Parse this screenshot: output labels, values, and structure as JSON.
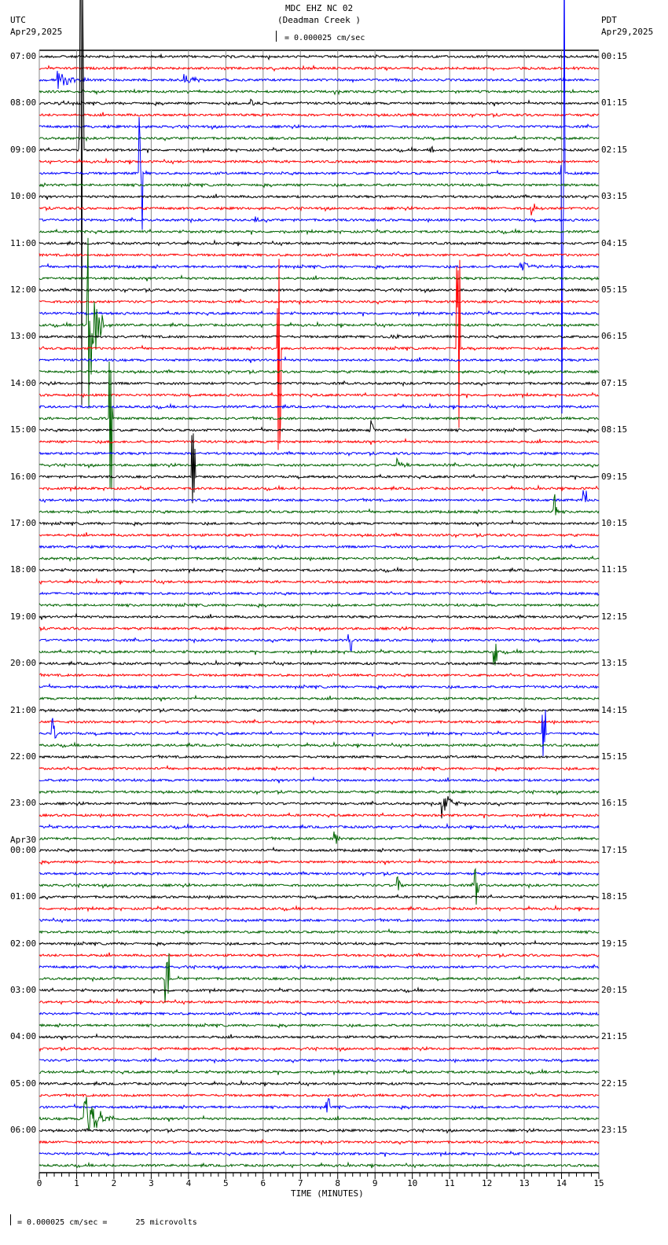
{
  "header": {
    "title": "MDC EHZ NC 02",
    "subtitle": "(Deadman Creek )",
    "scale": "= 0.000025 cm/sec",
    "left_tz": "UTC",
    "left_date": "Apr29,2025",
    "right_tz": "PDT",
    "right_date": "Apr29,2025"
  },
  "footer": {
    "scale_note": "= 0.000025 cm/sec =      25 microvolts"
  },
  "chart_data": {
    "type": "line",
    "title": "MDC EHZ NC 02 (Deadman Creek )",
    "xlabel": "TIME (MINUTES)",
    "xlim": [
      0,
      15
    ],
    "xticks": [
      "0",
      "1",
      "2",
      "3",
      "4",
      "5",
      "6",
      "7",
      "8",
      "9",
      "10",
      "11",
      "12",
      "13",
      "14",
      "15"
    ],
    "trace_minutes": 15,
    "trace_count": 96,
    "trace_colors": [
      "#000000",
      "#ff0000",
      "#0000ff",
      "#006400"
    ],
    "left_labels": [
      "07:00",
      "08:00",
      "09:00",
      "10:00",
      "11:00",
      "12:00",
      "13:00",
      "14:00",
      "15:00",
      "16:00",
      "17:00",
      "18:00",
      "19:00",
      "20:00",
      "21:00",
      "22:00",
      "23:00",
      "00:00",
      "01:00",
      "02:00",
      "03:00",
      "04:00",
      "05:00",
      "06:00"
    ],
    "date_change_label": "Apr30",
    "right_labels": [
      "00:15",
      "01:15",
      "02:15",
      "03:15",
      "04:15",
      "05:15",
      "06:15",
      "07:15",
      "08:15",
      "09:15",
      "10:15",
      "11:15",
      "12:15",
      "13:15",
      "14:15",
      "15:15",
      "16:15",
      "17:15",
      "18:15",
      "19:15",
      "20:15",
      "21:15",
      "22:15",
      "23:15"
    ],
    "events": [
      {
        "trace": 2,
        "minute": 0.5,
        "amp": 0.8,
        "dur": 0.8
      },
      {
        "trace": 2,
        "minute": 3.9,
        "amp": 0.6,
        "dur": 0.6
      },
      {
        "trace": 4,
        "minute": 5.65,
        "amp": 0.6,
        "dur": 0.2
      },
      {
        "trace": 8,
        "minute": 10.5,
        "amp": 0.4,
        "dur": 0.2
      },
      {
        "trace": 8,
        "minute": 1.1,
        "amp": 24,
        "dur": 0.05
      },
      {
        "trace": 10,
        "minute": 2.7,
        "amp": 5,
        "dur": 0.05
      },
      {
        "trace": 10,
        "minute": 14.0,
        "amp": 24,
        "dur": 0.05
      },
      {
        "trace": 13,
        "minute": 13.2,
        "amp": 0.6,
        "dur": 0.4
      },
      {
        "trace": 14,
        "minute": 5.8,
        "amp": 0.5,
        "dur": 0.1
      },
      {
        "trace": 18,
        "minute": 12.9,
        "amp": 0.5,
        "dur": 0.6
      },
      {
        "trace": 23,
        "minute": 1.3,
        "amp": 9,
        "dur": 0.4
      },
      {
        "trace": 24,
        "minute": 9.4,
        "amp": 0.5,
        "dur": 0.4
      },
      {
        "trace": 25,
        "minute": 6.4,
        "amp": 10,
        "dur": 0.05
      },
      {
        "trace": 25,
        "minute": 11.2,
        "amp": 10,
        "dur": 0.05
      },
      {
        "trace": 31,
        "minute": 1.9,
        "amp": 12,
        "dur": 0.05
      },
      {
        "trace": 32,
        "minute": 8.9,
        "amp": 1.2,
        "dur": 0.05
      },
      {
        "trace": 35,
        "minute": 9.6,
        "amp": 0.5,
        "dur": 0.4
      },
      {
        "trace": 36,
        "minute": 4.1,
        "amp": 4,
        "dur": 0.05
      },
      {
        "trace": 38,
        "minute": 14.6,
        "amp": 1.2,
        "dur": 0.05
      },
      {
        "trace": 39,
        "minute": 13.8,
        "amp": 3,
        "dur": 0.1
      },
      {
        "trace": 50,
        "minute": 8.3,
        "amp": 1,
        "dur": 0.05
      },
      {
        "trace": 51,
        "minute": 12.2,
        "amp": 1.2,
        "dur": 0.05
      },
      {
        "trace": 58,
        "minute": 0.35,
        "amp": 1.5,
        "dur": 0.2
      },
      {
        "trace": 58,
        "minute": 13.5,
        "amp": 2.5,
        "dur": 0.05
      },
      {
        "trace": 64,
        "minute": 10.8,
        "amp": 1.2,
        "dur": 0.5
      },
      {
        "trace": 67,
        "minute": 7.9,
        "amp": 0.7,
        "dur": 0.3
      },
      {
        "trace": 71,
        "minute": 9.6,
        "amp": 0.8,
        "dur": 0.3
      },
      {
        "trace": 71,
        "minute": 11.7,
        "amp": 2,
        "dur": 0.05
      },
      {
        "trace": 79,
        "minute": 3.4,
        "amp": 2.2,
        "dur": 0.05
      },
      {
        "trace": 90,
        "minute": 7.7,
        "amp": 0.8,
        "dur": 0.05
      },
      {
        "trace": 91,
        "minute": 1.2,
        "amp": 2.5,
        "dur": 0.8
      }
    ]
  }
}
